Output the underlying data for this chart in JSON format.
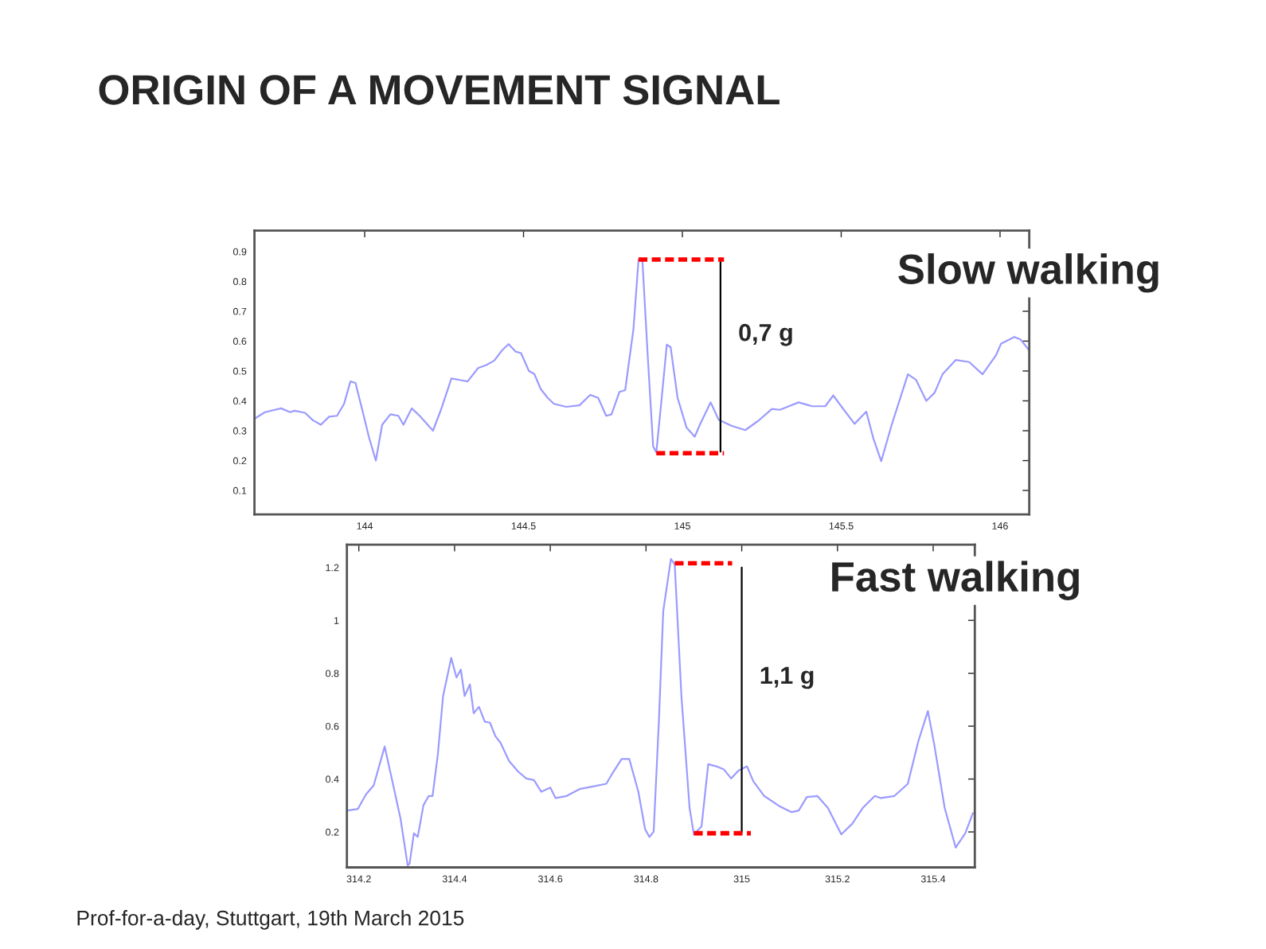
{
  "chart_data": [
    {
      "type": "line",
      "title": "ORIGIN OF A MOVEMENT SIGNAL",
      "subtitle": "Slow walking",
      "xlim": [
        143.653,
        146.092
      ],
      "ylim": [
        0.02,
        0.97
      ],
      "xticks": [
        144,
        144.5,
        145,
        145.5,
        146
      ],
      "yticks": [
        0.1,
        0.2,
        0.3,
        0.4,
        0.5,
        0.6,
        0.7,
        0.8,
        0.9
      ],
      "grid": false,
      "legend": false,
      "series": [
        {
          "color": "#9b9bff",
          "x": [
            143.653,
            143.686,
            143.737,
            143.765,
            143.779,
            143.812,
            143.837,
            143.862,
            143.888,
            143.913,
            143.935,
            143.955,
            143.971,
            143.997,
            144.013,
            144.035,
            144.055,
            144.081,
            144.106,
            144.122,
            144.148,
            144.173,
            144.215,
            144.24,
            144.273,
            144.299,
            144.324,
            144.357,
            144.383,
            144.408,
            144.433,
            144.453,
            144.475,
            144.492,
            144.517,
            144.534,
            144.554,
            144.576,
            144.596,
            144.634,
            144.676,
            144.71,
            144.735,
            144.76,
            144.777,
            144.802,
            144.82,
            144.846,
            144.862,
            144.874,
            144.891,
            144.908,
            144.918,
            144.935,
            144.951,
            144.963,
            144.985,
            145.013,
            145.039,
            145.055,
            145.089,
            145.114,
            145.156,
            145.198,
            145.24,
            145.282,
            145.307,
            145.366,
            145.408,
            145.45,
            145.475,
            145.5,
            145.542,
            145.579,
            145.601,
            145.626,
            145.659,
            145.71,
            145.735,
            145.768,
            145.794,
            145.819,
            145.861,
            145.903,
            145.945,
            145.987,
            146.003,
            146.045,
            146.065,
            146.091
          ],
          "values": [
            0.34,
            0.362,
            0.375,
            0.362,
            0.367,
            0.36,
            0.335,
            0.32,
            0.347,
            0.35,
            0.39,
            0.465,
            0.46,
            0.35,
            0.28,
            0.2,
            0.32,
            0.355,
            0.35,
            0.32,
            0.375,
            0.35,
            0.3,
            0.37,
            0.475,
            0.47,
            0.465,
            0.51,
            0.52,
            0.535,
            0.57,
            0.59,
            0.565,
            0.56,
            0.5,
            0.49,
            0.44,
            0.41,
            0.39,
            0.38,
            0.385,
            0.42,
            0.41,
            0.35,
            0.355,
            0.43,
            0.436,
            0.64,
            0.873,
            0.873,
            0.55,
            0.248,
            0.227,
            0.41,
            0.588,
            0.58,
            0.41,
            0.311,
            0.28,
            0.32,
            0.395,
            0.337,
            0.316,
            0.302,
            0.334,
            0.373,
            0.37,
            0.395,
            0.382,
            0.382,
            0.418,
            0.382,
            0.323,
            0.364,
            0.275,
            0.198,
            0.32,
            0.489,
            0.471,
            0.4,
            0.427,
            0.489,
            0.537,
            0.53,
            0.489,
            0.552,
            0.591,
            0.614,
            0.605,
            0.57
          ]
        },
        {
          "color": "#ff0000",
          "line_style": "dashed",
          "x": [
            144.862,
            145.131
          ],
          "values": [
            0.873,
            0.873
          ]
        },
        {
          "color": "#ff0000",
          "line_style": "dashed",
          "x": [
            144.918,
            145.131
          ],
          "values": [
            0.225,
            0.225
          ]
        },
        {
          "color": "#000000",
          "x": [
            145.12,
            145.12
          ],
          "values": [
            0.865,
            0.23
          ]
        }
      ],
      "annotations": [
        "0,7 g"
      ]
    },
    {
      "type": "line",
      "subtitle": "Fast walking",
      "xlim": [
        314.175,
        315.487
      ],
      "ylim": [
        0.066,
        1.286
      ],
      "xticks": [
        314.2,
        314.4,
        314.6,
        314.8,
        315,
        315.2,
        315.4
      ],
      "yticks": [
        0.2,
        0.4,
        0.6,
        0.8,
        1,
        1.2
      ],
      "grid": false,
      "legend": false,
      "series": [
        {
          "color": "#9b9bff",
          "x": [
            314.175,
            314.198,
            314.215,
            314.231,
            314.254,
            314.27,
            314.287,
            314.302,
            314.306,
            314.315,
            314.323,
            314.335,
            314.346,
            314.354,
            314.365,
            314.376,
            314.393,
            314.404,
            314.413,
            314.421,
            314.432,
            314.44,
            314.451,
            314.463,
            314.474,
            314.485,
            314.496,
            314.514,
            314.533,
            314.55,
            314.566,
            314.581,
            314.6,
            314.611,
            314.634,
            314.661,
            314.689,
            314.717,
            314.728,
            314.749,
            314.765,
            314.784,
            314.798,
            314.807,
            314.816,
            314.827,
            314.836,
            314.852,
            314.86,
            314.874,
            314.891,
            314.9,
            314.916,
            314.93,
            314.947,
            314.963,
            314.978,
            314.993,
            315.011,
            315.024,
            315.047,
            315.08,
            315.104,
            315.119,
            315.136,
            315.158,
            315.18,
            315.208,
            315.231,
            315.253,
            315.278,
            315.291,
            315.319,
            315.347,
            315.369,
            315.389,
            315.402,
            315.424,
            315.447,
            315.467,
            315.483
          ],
          "values": [
            0.281,
            0.287,
            0.342,
            0.376,
            0.523,
            0.392,
            0.251,
            0.074,
            0.08,
            0.195,
            0.181,
            0.301,
            0.336,
            0.336,
            0.492,
            0.714,
            0.858,
            0.784,
            0.814,
            0.714,
            0.758,
            0.649,
            0.673,
            0.617,
            0.613,
            0.563,
            0.537,
            0.468,
            0.428,
            0.402,
            0.396,
            0.352,
            0.368,
            0.328,
            0.336,
            0.362,
            0.372,
            0.382,
            0.416,
            0.476,
            0.476,
            0.352,
            0.211,
            0.181,
            0.201,
            0.623,
            1.035,
            1.232,
            1.212,
            0.713,
            0.291,
            0.191,
            0.221,
            0.456,
            0.448,
            0.436,
            0.402,
            0.432,
            0.448,
            0.392,
            0.336,
            0.296,
            0.275,
            0.281,
            0.332,
            0.336,
            0.291,
            0.191,
            0.231,
            0.291,
            0.336,
            0.328,
            0.336,
            0.382,
            0.543,
            0.657,
            0.533,
            0.291,
            0.141,
            0.195,
            0.271
          ]
        },
        {
          "color": "#ff0000",
          "line_style": "dashed",
          "x": [
            314.86,
            314.98
          ],
          "values": [
            1.216,
            1.216
          ]
        },
        {
          "color": "#ff0000",
          "line_style": "dashed",
          "x": [
            314.9,
            315.019
          ],
          "values": [
            0.195,
            0.195
          ]
        },
        {
          "color": "#000000",
          "x": [
            315.0,
            315.0
          ],
          "values": [
            1.2,
            0.2
          ]
        }
      ],
      "annotations": [
        "1,1 g",
        "Prof-for-a-day, Stuttgart, 19th March 2015"
      ]
    }
  ]
}
